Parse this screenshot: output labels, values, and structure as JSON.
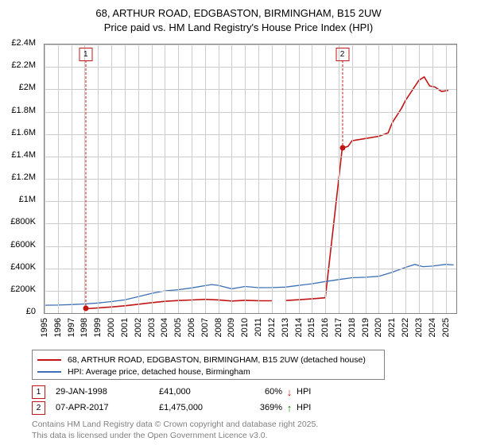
{
  "title_line1": "68, ARTHUR ROAD, EDGBASTON, BIRMINGHAM, B15 2UW",
  "title_line2": "Price paid vs. HM Land Registry's House Price Index (HPI)",
  "chart": {
    "type": "line",
    "background_color": "#ffffff",
    "border_color": "#808080",
    "grid_color": "#cccccc",
    "x": {
      "min": 1995,
      "max": 2025.8,
      "ticks": [
        1995,
        1996,
        1997,
        1998,
        1999,
        2000,
        2001,
        2002,
        2003,
        2004,
        2005,
        2006,
        2007,
        2008,
        2009,
        2010,
        2011,
        2012,
        2013,
        2014,
        2015,
        2016,
        2017,
        2018,
        2019,
        2020,
        2021,
        2022,
        2023,
        2024,
        2025
      ],
      "tick_labels": [
        "1995",
        "1996",
        "1997",
        "1998",
        "1999",
        "2000",
        "2001",
        "2002",
        "2003",
        "2004",
        "2005",
        "2006",
        "2007",
        "2008",
        "2009",
        "2010",
        "2011",
        "2012",
        "2013",
        "2014",
        "2015",
        "2016",
        "2017",
        "2018",
        "2019",
        "2020",
        "2021",
        "2022",
        "2023",
        "2024",
        "2025"
      ]
    },
    "y": {
      "min": 0,
      "max": 2400000,
      "tick_step": 200000,
      "tick_labels": [
        "£0",
        "£200K",
        "£400K",
        "£600K",
        "£800K",
        "£1M",
        "£1.2M",
        "£1.4M",
        "£1.6M",
        "£1.8M",
        "£2M",
        "£2.2M",
        "£2.4M"
      ]
    },
    "series": [
      {
        "name": "price_paid",
        "color": "#c21515",
        "stroke_width": 1.6,
        "points": [
          [
            1998.08,
            41000
          ],
          [
            1998.5,
            42000
          ],
          [
            1999,
            46000
          ],
          [
            2000,
            55000
          ],
          [
            2001,
            65000
          ],
          [
            2002,
            79000
          ],
          [
            2003,
            93000
          ],
          [
            2004,
            105000
          ],
          [
            2005,
            112000
          ],
          [
            2006,
            117000
          ],
          [
            2007,
            123000
          ],
          [
            2008,
            118000
          ],
          [
            2009,
            108000
          ],
          [
            2010,
            114000
          ],
          [
            2011,
            111000
          ],
          [
            2012,
            110000
          ],
          [
            2013,
            112000
          ],
          [
            2014,
            119000
          ],
          [
            2015,
            127000
          ],
          [
            2016,
            137000
          ],
          [
            2017.27,
            1475000
          ],
          [
            2017.7,
            1490000
          ],
          [
            2018,
            1540000
          ],
          [
            2019,
            1560000
          ],
          [
            2020,
            1580000
          ],
          [
            2020.7,
            1610000
          ],
          [
            2021,
            1700000
          ],
          [
            2021.7,
            1830000
          ],
          [
            2022,
            1900000
          ],
          [
            2022.5,
            1990000
          ],
          [
            2023,
            2080000
          ],
          [
            2023.4,
            2110000
          ],
          [
            2023.8,
            2030000
          ],
          [
            2024.2,
            2020000
          ],
          [
            2024.7,
            1980000
          ],
          [
            2025.2,
            1990000
          ]
        ],
        "discontinuity_before_index": 16,
        "markers": [
          {
            "x": 1998.08,
            "y": 41000
          },
          {
            "x": 2017.27,
            "y": 1475000
          }
        ]
      },
      {
        "name": "hpi",
        "color": "#3b6fb6",
        "stroke_width": 1.3,
        "points": [
          [
            1995,
            70000
          ],
          [
            1996,
            72000
          ],
          [
            1997,
            76000
          ],
          [
            1998,
            82000
          ],
          [
            1999,
            90000
          ],
          [
            2000,
            103000
          ],
          [
            2001,
            118000
          ],
          [
            2002,
            146000
          ],
          [
            2003,
            176000
          ],
          [
            2004,
            199000
          ],
          [
            2005,
            209000
          ],
          [
            2006,
            225000
          ],
          [
            2007.5,
            255000
          ],
          [
            2008,
            248000
          ],
          [
            2009,
            217000
          ],
          [
            2010,
            238000
          ],
          [
            2011,
            227000
          ],
          [
            2012,
            228000
          ],
          [
            2013,
            232000
          ],
          [
            2014,
            247000
          ],
          [
            2015,
            262000
          ],
          [
            2016,
            282000
          ],
          [
            2017,
            300000
          ],
          [
            2018,
            316000
          ],
          [
            2019,
            320000
          ],
          [
            2020,
            329000
          ],
          [
            2021,
            365000
          ],
          [
            2022,
            408000
          ],
          [
            2022.7,
            435000
          ],
          [
            2023.3,
            415000
          ],
          [
            2024,
            420000
          ],
          [
            2025,
            435000
          ],
          [
            2025.6,
            430000
          ]
        ]
      }
    ],
    "callouts": [
      {
        "n": "1",
        "x": 1998.08,
        "y_top": 2400000,
        "y_marker": 41000,
        "color": "#c21515"
      },
      {
        "n": "2",
        "x": 2017.27,
        "y_top": 2400000,
        "y_marker": 1475000,
        "color": "#c21515"
      }
    ]
  },
  "legend": [
    {
      "color": "#c21515",
      "label": "68, ARTHUR ROAD, EDGBASTON, BIRMINGHAM, B15 2UW (detached house)"
    },
    {
      "color": "#3b6fb6",
      "label": "HPI: Average price, detached house, Birmingham"
    }
  ],
  "sales": [
    {
      "n": "1",
      "date": "29-JAN-1998",
      "price": "£41,000",
      "pct": "60%",
      "dir": "↓",
      "dir_color": "#c21515",
      "hpi": "HPI",
      "badge_color": "#c21515"
    },
    {
      "n": "2",
      "date": "07-APR-2017",
      "price": "£1,475,000",
      "pct": "369%",
      "dir": "↑",
      "dir_color": "#108a00",
      "hpi": "HPI",
      "badge_color": "#c21515"
    }
  ],
  "footer_l1": "Contains HM Land Registry data © Crown copyright and database right 2025.",
  "footer_l2": "This data is licensed under the Open Government Licence v3.0.",
  "tick_fontsize": 11
}
